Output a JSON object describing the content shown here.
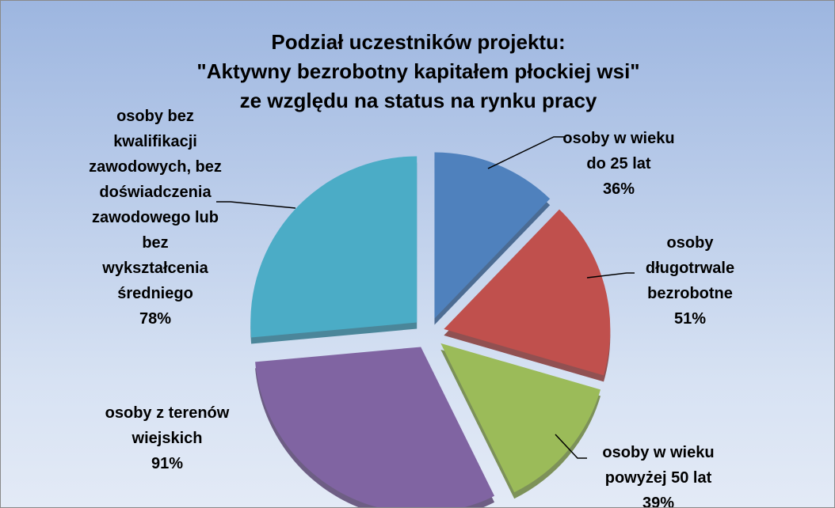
{
  "chart_data": {
    "type": "pie",
    "title": "Podział uczestników projektu:\n\"Aktywny bezrobotny kapitałem płockiej wsi\"\nze względu na status na rynku pracy",
    "categories": [
      "osoby w wieku\ndo 25 lat",
      "osoby\ndługotrwale\nbezrobotne",
      "osoby w wieku\npowyżej 50 lat",
      "osoby z terenów\nwiejskich",
      "osoby bez\nkwalifikacji\nzawodowych, bez\ndoświadczenia\nzawodowego lub\nbez\nwykształcenia\nśredniego"
    ],
    "values": [
      36,
      51,
      39,
      91,
      78
    ],
    "value_labels": [
      "36%",
      "51%",
      "39%",
      "91%",
      "78%"
    ],
    "colors": [
      "#4f81bd",
      "#c0504d",
      "#9bbb59",
      "#8064a2",
      "#4bacc6"
    ]
  }
}
